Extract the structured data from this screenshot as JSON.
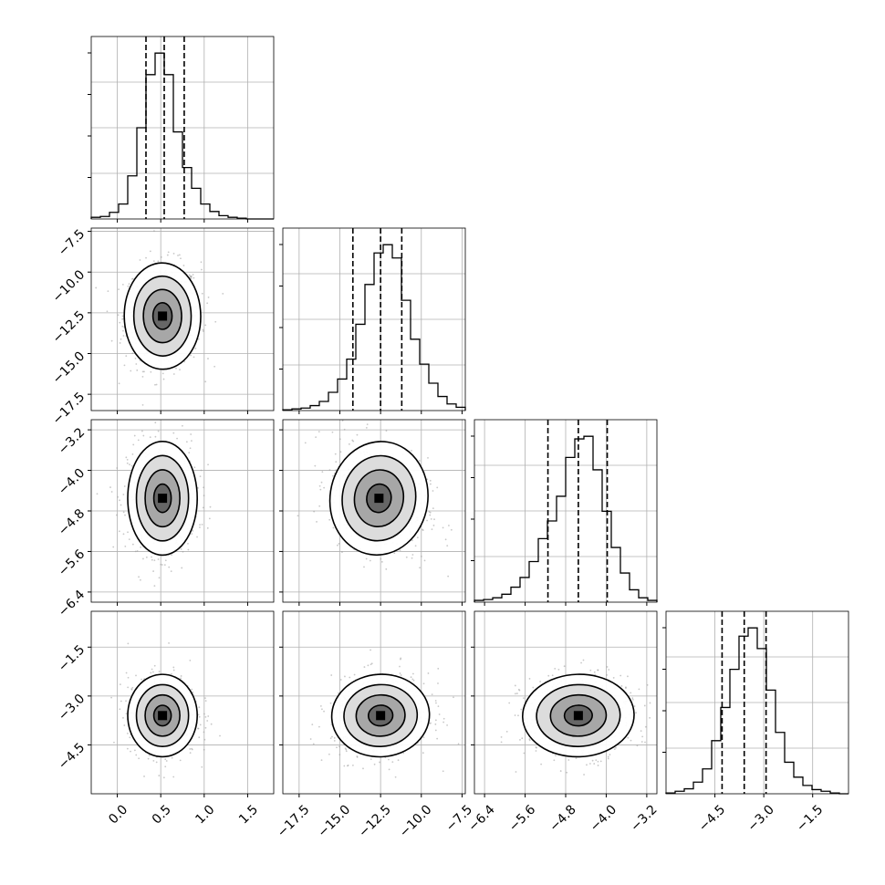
{
  "chart_data": {
    "type": "corner",
    "grid": true,
    "colors": {
      "histogram": "#000000",
      "scatter": "#9a9a9a",
      "grid": "#b0b0b0",
      "background": "#ffffff"
    },
    "parameters": [
      {
        "range": [
          -0.3,
          1.8
        ],
        "ticks": [
          0.0,
          0.5,
          1.0,
          1.5
        ],
        "tick_labels": [
          "0.0",
          "0.5",
          "1.0",
          "1.5"
        ],
        "quantiles": [
          0.33,
          0.54,
          0.77
        ],
        "mean": 0.54,
        "sd": 0.2
      },
      {
        "range": [
          -18.5,
          -7.3
        ],
        "ticks": [
          -17.5,
          -15.0,
          -12.5,
          -10.0,
          -7.5
        ],
        "tick_labels": [
          "−17.5",
          "−15.0",
          "−12.5",
          "−10.0",
          "−7.5"
        ],
        "quantiles": [
          -14.2,
          -12.5,
          -11.2
        ],
        "mean": -12.6,
        "sd": 1.5
      },
      {
        "range": [
          -6.6,
          -3.0
        ],
        "ticks": [
          -6.4,
          -5.6,
          -4.8,
          -4.0,
          -3.2
        ],
        "tick_labels": [
          "−6.4",
          "−5.6",
          "−4.8",
          "−4.0",
          "−3.2"
        ],
        "quantiles": [
          -5.15,
          -4.55,
          -3.98
        ],
        "mean": -4.55,
        "sd": 0.55
      },
      {
        "range": [
          -6.0,
          -0.4
        ],
        "ticks": [
          -4.5,
          -3.0,
          -1.5
        ],
        "tick_labels": [
          "−4.5",
          "−3.0",
          "−1.5"
        ],
        "quantiles": [
          -4.28,
          -3.6,
          -2.93
        ],
        "mean": -3.6,
        "sd": 0.65
      }
    ],
    "histograms": [
      [
        2,
        3,
        8,
        18,
        52,
        110,
        174,
        200,
        174,
        105,
        62,
        37,
        18,
        9,
        4,
        2,
        1,
        0,
        0,
        0
      ],
      [
        1,
        2,
        3,
        6,
        11,
        22,
        38,
        62,
        104,
        152,
        190,
        200,
        184,
        133,
        86,
        56,
        33,
        17,
        8,
        4
      ],
      [
        2,
        3,
        5,
        9,
        17,
        28,
        46,
        72,
        92,
        120,
        164,
        185,
        188,
        150,
        103,
        62,
        33,
        14,
        5,
        2
      ],
      [
        1,
        3,
        6,
        14,
        30,
        64,
        104,
        150,
        190,
        200,
        175,
        125,
        74,
        38,
        20,
        10,
        5,
        3,
        1,
        0
      ]
    ],
    "pairs": [
      {
        "x": 0,
        "y": 1,
        "center": [
          0.52,
          -12.7
        ],
        "sd": [
          0.22,
          1.6
        ],
        "corr": 0.02
      },
      {
        "x": 0,
        "y": 2,
        "center": [
          0.52,
          -4.55
        ],
        "sd": [
          0.2,
          0.55
        ],
        "corr": 0.0
      },
      {
        "x": 1,
        "y": 2,
        "center": [
          -12.6,
          -4.55
        ],
        "sd": [
          1.5,
          0.55
        ],
        "corr": -0.25
      },
      {
        "x": 0,
        "y": 3,
        "center": [
          0.52,
          -3.6
        ],
        "sd": [
          0.2,
          0.62
        ],
        "corr": 0.0
      },
      {
        "x": 1,
        "y": 3,
        "center": [
          -12.5,
          -3.6
        ],
        "sd": [
          1.5,
          0.62
        ],
        "corr": 0.1
      },
      {
        "x": 2,
        "y": 3,
        "center": [
          -4.55,
          -3.6
        ],
        "sd": [
          0.55,
          0.62
        ],
        "corr": 0.05
      }
    ],
    "contour_levels_sigma": [
      0.5,
      1.0,
      1.5,
      2.0
    ]
  }
}
